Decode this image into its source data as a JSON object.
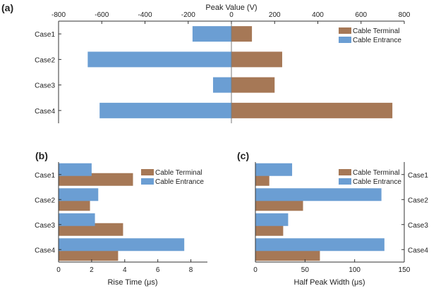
{
  "colors": {
    "terminal": "#A67856",
    "entrance": "#6B9ED3",
    "axis": "#333333",
    "zero_line": "#7A7A7A"
  },
  "chart_data": [
    {
      "panel_label": "(a)",
      "type": "bar",
      "orientation": "horizontal",
      "categories": [
        "Case1",
        "Case2",
        "Case3",
        "Case4"
      ],
      "series": [
        {
          "name": "Cable Terminal",
          "values": [
            95,
            235,
            200,
            745
          ]
        },
        {
          "name": "Cable Entrance",
          "values": [
            -180,
            -665,
            -85,
            -610
          ]
        }
      ],
      "xlabel": "Peak Value (V)",
      "xlim": [
        -800,
        800
      ],
      "xticks": [
        "-800",
        "-600",
        "-400",
        "-200",
        "0",
        "200",
        "400",
        "600",
        "800"
      ],
      "x_axis_position": "top",
      "legend_position": "top-right",
      "grid": false
    },
    {
      "panel_label": "(b)",
      "type": "bar",
      "orientation": "horizontal",
      "categories": [
        "Case1",
        "Case2",
        "Case3",
        "Case4"
      ],
      "series": [
        {
          "name": "Cable Terminal",
          "values": [
            4.5,
            1.9,
            3.9,
            3.6
          ]
        },
        {
          "name": "Cable Entrance",
          "values": [
            2.0,
            2.4,
            2.2,
            7.6
          ]
        }
      ],
      "xlabel": "Rise Time (μs)",
      "xlim": [
        0,
        9
      ],
      "xticks": [
        "0",
        "2",
        "4",
        "6",
        "8"
      ],
      "x_axis_position": "bottom",
      "legend_position": "top-right",
      "grid": false
    },
    {
      "panel_label": "(c)",
      "type": "bar",
      "orientation": "horizontal",
      "categories": [
        "Case1",
        "Case2",
        "Case3",
        "Case4"
      ],
      "series": [
        {
          "name": "Cable Terminal",
          "values": [
            14,
            48,
            28,
            65
          ]
        },
        {
          "name": "Cable Entrance",
          "values": [
            37,
            127,
            33,
            130
          ]
        }
      ],
      "xlabel": "Half Peak Width (μs)",
      "xlim": [
        0,
        150
      ],
      "xticks": [
        "0",
        "50",
        "100",
        "150"
      ],
      "x_axis_position": "bottom",
      "y_axis_position": "right",
      "legend_position": "top-right",
      "grid": false
    }
  ]
}
